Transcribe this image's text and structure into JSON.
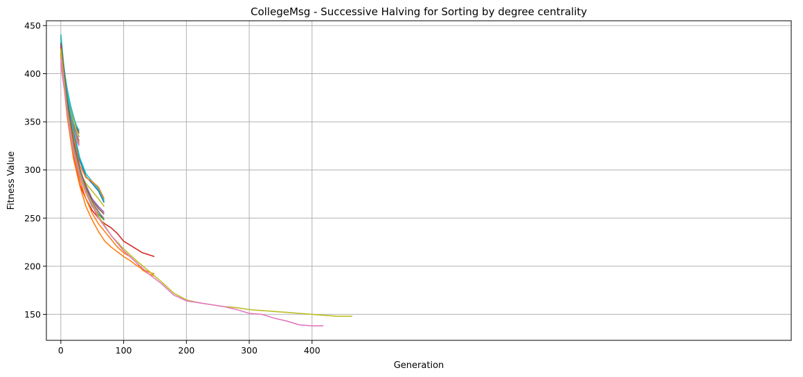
{
  "chart_data": {
    "type": "line",
    "title": "CollegeMsg - Successive Halving for Sorting by degree centrality",
    "xlabel": "Generation",
    "ylabel": "Fitness Value",
    "xlim": [
      -23,
      1163
    ],
    "ylim": [
      123,
      455
    ],
    "xticks": [
      0,
      100,
      200,
      300,
      400
    ],
    "yticks": [
      150,
      200,
      250,
      300,
      350,
      400,
      450
    ],
    "grid": true,
    "legend": "none",
    "series": [
      {
        "color": "#1f77b4",
        "x": [
          0,
          5,
          10,
          15,
          20,
          25,
          29
        ],
        "y": [
          432,
          395,
          376,
          360,
          348,
          342,
          340
        ]
      },
      {
        "color": "#ff7f0e",
        "x": [
          0,
          5,
          10,
          15,
          20,
          25,
          29
        ],
        "y": [
          428,
          392,
          370,
          356,
          345,
          336,
          331
        ]
      },
      {
        "color": "#2ca02c",
        "x": [
          0,
          5,
          10,
          15,
          20,
          25,
          29
        ],
        "y": [
          425,
          390,
          366,
          350,
          338,
          330,
          326
        ]
      },
      {
        "color": "#d62728",
        "x": [
          0,
          5,
          10,
          15,
          20,
          25,
          29
        ],
        "y": [
          430,
          396,
          372,
          357,
          344,
          334,
          328
        ]
      },
      {
        "color": "#9467bd",
        "x": [
          0,
          5,
          10,
          15,
          20,
          25,
          29
        ],
        "y": [
          436,
          400,
          378,
          362,
          349,
          340,
          334
        ]
      },
      {
        "color": "#8c564b",
        "x": [
          0,
          5,
          10,
          15,
          20,
          25,
          29
        ],
        "y": [
          438,
          404,
          384,
          368,
          356,
          345,
          338
        ]
      },
      {
        "color": "#e377c2",
        "x": [
          0,
          5,
          10,
          15,
          20,
          25,
          29
        ],
        "y": [
          410,
          386,
          368,
          352,
          340,
          331,
          325
        ]
      },
      {
        "color": "#7f7f7f",
        "x": [
          0,
          5,
          10,
          15,
          20,
          25,
          29
        ],
        "y": [
          422,
          394,
          373,
          358,
          346,
          336,
          330
        ]
      },
      {
        "color": "#bcbd22",
        "x": [
          0,
          5,
          10,
          15,
          20,
          25,
          29
        ],
        "y": [
          440,
          402,
          380,
          364,
          351,
          341,
          335
        ]
      },
      {
        "color": "#17becf",
        "x": [
          0,
          5,
          10,
          15,
          20,
          25,
          29
        ],
        "y": [
          441,
          406,
          385,
          368,
          355,
          346,
          341
        ]
      },
      {
        "color": "#ff7f7f",
        "x": [
          0,
          5,
          10,
          15,
          20,
          25,
          29
        ],
        "y": [
          412,
          388,
          369,
          353,
          342,
          333,
          327
        ]
      },
      {
        "color": "#1f77b4",
        "x": [
          0,
          10,
          20,
          30,
          40,
          50,
          60,
          69
        ],
        "y": [
          430,
          375,
          338,
          310,
          293,
          286,
          278,
          266
        ]
      },
      {
        "color": "#17becf",
        "x": [
          0,
          10,
          20,
          30,
          40,
          50,
          60,
          69
        ],
        "y": [
          434,
          380,
          342,
          313,
          296,
          288,
          280,
          268
        ]
      },
      {
        "color": "#ff7f0e",
        "x": [
          0,
          10,
          20,
          30,
          40,
          50,
          60,
          69
        ],
        "y": [
          428,
          372,
          335,
          305,
          292,
          288,
          282,
          270
        ]
      },
      {
        "color": "#bcbd22",
        "x": [
          0,
          10,
          20,
          30,
          40,
          50,
          60,
          69
        ],
        "y": [
          424,
          366,
          328,
          298,
          286,
          278,
          270,
          262
        ]
      },
      {
        "color": "#9467bd",
        "x": [
          0,
          10,
          20,
          30,
          40,
          50,
          60,
          69
        ],
        "y": [
          426,
          368,
          325,
          300,
          284,
          270,
          262,
          256
        ]
      },
      {
        "color": "#8c564b",
        "x": [
          0,
          10,
          20,
          30,
          40,
          50,
          60,
          69
        ],
        "y": [
          432,
          374,
          330,
          302,
          282,
          268,
          260,
          254
        ]
      },
      {
        "color": "#e377c2",
        "x": [
          0,
          10,
          20,
          30,
          40,
          50,
          60,
          69
        ],
        "y": [
          418,
          360,
          322,
          296,
          278,
          265,
          256,
          250
        ]
      },
      {
        "color": "#7f7f7f",
        "x": [
          0,
          10,
          20,
          30,
          40,
          50,
          60,
          69
        ],
        "y": [
          420,
          364,
          326,
          300,
          280,
          266,
          257,
          248
        ]
      },
      {
        "color": "#2ca02c",
        "x": [
          0,
          10,
          20,
          30,
          40,
          50,
          60,
          69
        ],
        "y": [
          422,
          366,
          320,
          294,
          276,
          262,
          254,
          248
        ]
      },
      {
        "color": "#d62728",
        "x": [
          0,
          10,
          20,
          30,
          40,
          50,
          60,
          70,
          80,
          90,
          100,
          110,
          120,
          130,
          140,
          149
        ],
        "y": [
          428,
          360,
          315,
          285,
          270,
          258,
          250,
          244,
          240,
          234,
          226,
          222,
          218,
          214,
          212,
          210
        ]
      },
      {
        "color": "#ff7f0e",
        "x": [
          0,
          10,
          20,
          30,
          40,
          50,
          60,
          70,
          80,
          90,
          100,
          110,
          120,
          130,
          140,
          149
        ],
        "y": [
          420,
          356,
          312,
          284,
          262,
          248,
          236,
          226,
          220,
          215,
          210,
          206,
          201,
          197,
          194,
          192
        ]
      },
      {
        "color": "#ff7f0e",
        "x": [
          0,
          10,
          20,
          30,
          40,
          50,
          60,
          70,
          80,
          90,
          100,
          110,
          120,
          130,
          140,
          149
        ],
        "y": [
          424,
          360,
          318,
          290,
          270,
          255,
          244,
          236,
          228,
          220,
          214,
          210,
          204,
          196,
          192,
          190
        ]
      },
      {
        "color": "#bcbd22",
        "x": [
          0,
          10,
          20,
          30,
          40,
          60,
          80,
          100,
          120,
          140,
          160,
          180,
          200,
          220,
          240,
          260,
          280,
          300,
          320,
          340,
          360,
          380,
          400,
          420,
          440,
          464
        ],
        "y": [
          426,
          364,
          322,
          296,
          278,
          252,
          232,
          218,
          206,
          195,
          184,
          172,
          165,
          162,
          160,
          158,
          157,
          155,
          154,
          153,
          152,
          151,
          150,
          149,
          148,
          148
        ]
      },
      {
        "color": "#e377c2",
        "x": [
          0,
          10,
          20,
          30,
          40,
          60,
          80,
          100,
          120,
          140,
          160,
          180,
          200,
          220,
          240,
          260,
          280,
          300,
          320,
          340,
          360,
          380,
          400,
          418
        ],
        "y": [
          416,
          360,
          320,
          294,
          276,
          250,
          232,
          216,
          204,
          192,
          182,
          170,
          164,
          162,
          160,
          158,
          155,
          151,
          150,
          146,
          143,
          139,
          138,
          138
        ]
      }
    ]
  }
}
